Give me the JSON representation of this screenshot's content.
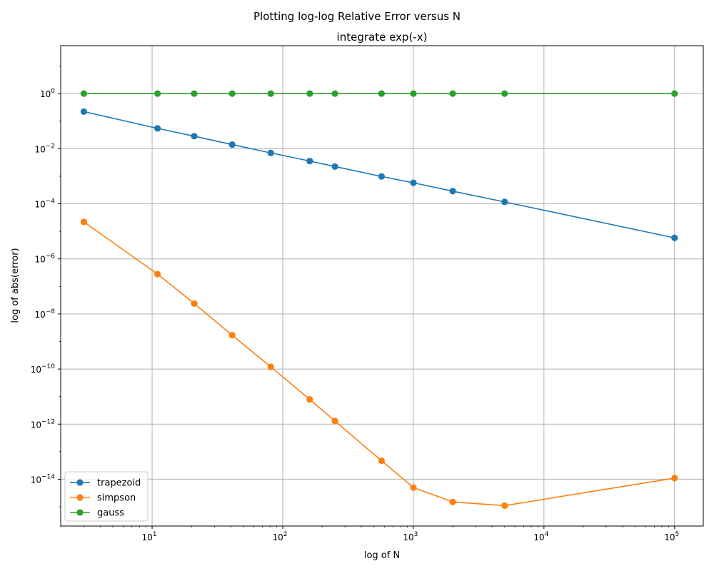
{
  "figure": {
    "suptitle": "Plotting log-log Relative Error versus N"
  },
  "chart_data": {
    "type": "line",
    "title": "integrate exp(-x)",
    "xlabel": "log of N",
    "ylabel": "log of abs(error)",
    "xscale": "log",
    "yscale": "log",
    "xlim": [
      1.995,
      165959
    ],
    "ylim": [
      2e-16,
      55.0
    ],
    "grid": true,
    "legend_position": "lower-left",
    "x_major_ticks": [
      {
        "value": 10,
        "base": "10",
        "exp": "1"
      },
      {
        "value": 100,
        "base": "10",
        "exp": "2"
      },
      {
        "value": 1000,
        "base": "10",
        "exp": "3"
      },
      {
        "value": 10000,
        "base": "10",
        "exp": "4"
      },
      {
        "value": 100000,
        "base": "10",
        "exp": "5"
      }
    ],
    "y_major_ticks": [
      {
        "value": 1,
        "base": "10",
        "exp": "0"
      },
      {
        "value": 0.01,
        "base": "10",
        "exp": "−2"
      },
      {
        "value": 0.0001,
        "base": "10",
        "exp": "−4"
      },
      {
        "value": 1e-06,
        "base": "10",
        "exp": "−6"
      },
      {
        "value": 1e-08,
        "base": "10",
        "exp": "−8"
      },
      {
        "value": 1e-10,
        "base": "10",
        "exp": "−10"
      },
      {
        "value": 1e-12,
        "base": "10",
        "exp": "−12"
      },
      {
        "value": 1e-14,
        "base": "10",
        "exp": "−14"
      }
    ],
    "x": [
      3,
      11,
      21,
      41,
      81,
      161,
      251,
      571,
      1001,
      2001,
      5001,
      100001
    ],
    "series": [
      {
        "name": "trapezoid",
        "color": "#1f77b4",
        "values": [
          0.222,
          0.0547,
          0.0285,
          0.0141,
          0.00703,
          0.00356,
          0.00225,
          0.00098,
          0.000578,
          0.000288,
          0.000117,
          5.8e-06
        ]
      },
      {
        "name": "simpson",
        "color": "#ff7f0e",
        "values": [
          2.2e-05,
          2.8e-07,
          2.4e-08,
          1.7e-09,
          1.2e-10,
          7.9e-12,
          1.3e-12,
          4.7e-14,
          5e-15,
          1.5e-15,
          1.1e-15,
          1.1e-14
        ]
      },
      {
        "name": "gauss",
        "color": "#2ca02c",
        "values": [
          1,
          1,
          1,
          1,
          1,
          1,
          1,
          1,
          1,
          1,
          1,
          1
        ]
      }
    ]
  }
}
